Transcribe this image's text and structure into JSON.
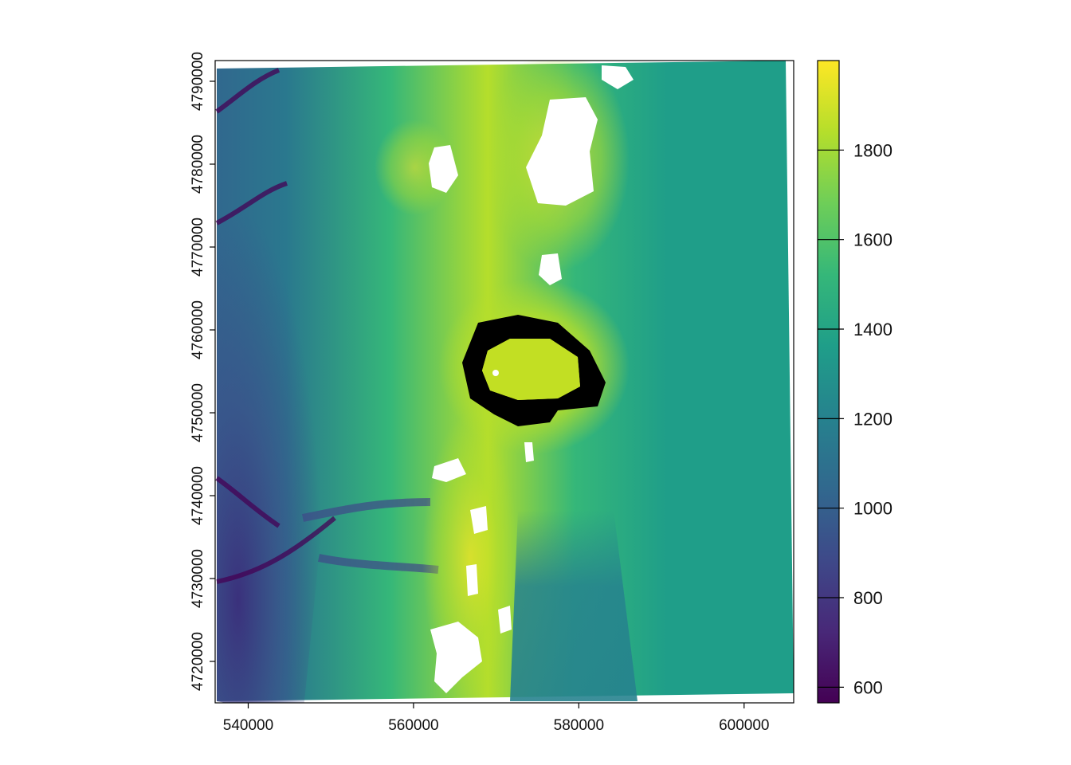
{
  "map": {
    "x_axis": {
      "range": [
        536000,
        606000
      ],
      "ticks": [
        540000,
        560000,
        580000,
        600000
      ],
      "tick_labels": [
        "540000",
        "560000",
        "580000",
        "600000"
      ]
    },
    "y_axis": {
      "range": [
        4715000,
        4792500
      ],
      "ticks": [
        4720000,
        4730000,
        4740000,
        4750000,
        4760000,
        4770000,
        4780000,
        4790000
      ],
      "tick_labels": [
        "4720000",
        "4730000",
        "4740000",
        "4750000",
        "4760000",
        "4770000",
        "4780000",
        "4790000"
      ]
    },
    "colorbar": {
      "range": [
        565,
        2000
      ],
      "ticks": [
        600,
        800,
        1000,
        1200,
        1400,
        1600,
        1800
      ],
      "tick_labels": [
        "600",
        "800",
        "1000",
        "1200",
        "1400",
        "1600",
        "1800"
      ],
      "colormap": "viridis",
      "colors": [
        "#440154",
        "#482878",
        "#3e4989",
        "#31688e",
        "#26828e",
        "#1f9e89",
        "#35b779",
        "#6ece58",
        "#b5de2b",
        "#fde725"
      ]
    },
    "na_color": "#ffffff"
  }
}
